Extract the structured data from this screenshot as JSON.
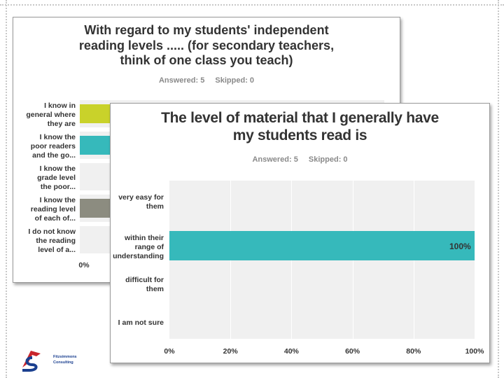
{
  "chart_data": [
    {
      "type": "bar",
      "orientation": "horizontal",
      "title": "With regard to my students' independent reading levels ..... (for secondary teachers, think of one class you teach)",
      "title_lines": [
        "With regard to my students' independent",
        "reading levels ..... (for secondary teachers,",
        "think of one class you teach)"
      ],
      "answered": "Answered: 5",
      "skipped": "Skipped: 0",
      "categories": [
        "I know in\ngeneral where\nthey are",
        "I know the\npoor readers\nand the go...",
        "I know the\ngrade level\nthe poor...",
        "I know the\nreading level\nof each of...",
        "I do not know\nthe reading\nlevel of a..."
      ],
      "values": [
        null,
        null,
        0,
        null,
        0
      ],
      "bar_colors": [
        "#c9d22a",
        "#36b9bb",
        "#f0f0f0",
        "#8c8c80",
        "#f0f0f0"
      ],
      "xticks": [
        "0%"
      ],
      "xlim": [
        0,
        100
      ],
      "grid": true
    },
    {
      "type": "bar",
      "orientation": "horizontal",
      "title": "The level of material that I generally have my students read is",
      "title_lines": [
        "The level of material that I generally have",
        "my students read is"
      ],
      "answered": "Answered: 5",
      "skipped": "Skipped: 0",
      "categories": [
        "very easy for\nthem",
        "within their\nrange of\nunderstanding",
        "difficult for\nthem",
        "I am not sure"
      ],
      "values": [
        0,
        100,
        0,
        0
      ],
      "value_labels": [
        "",
        "100%",
        "",
        ""
      ],
      "bar_color": "#36b9bb",
      "xticks": [
        "0%",
        "20%",
        "40%",
        "60%",
        "80%",
        "100%"
      ],
      "xlim": [
        0,
        100
      ],
      "grid": true
    }
  ],
  "logo": {
    "line1": "Fitzsimmons",
    "line2": "Consulting"
  }
}
